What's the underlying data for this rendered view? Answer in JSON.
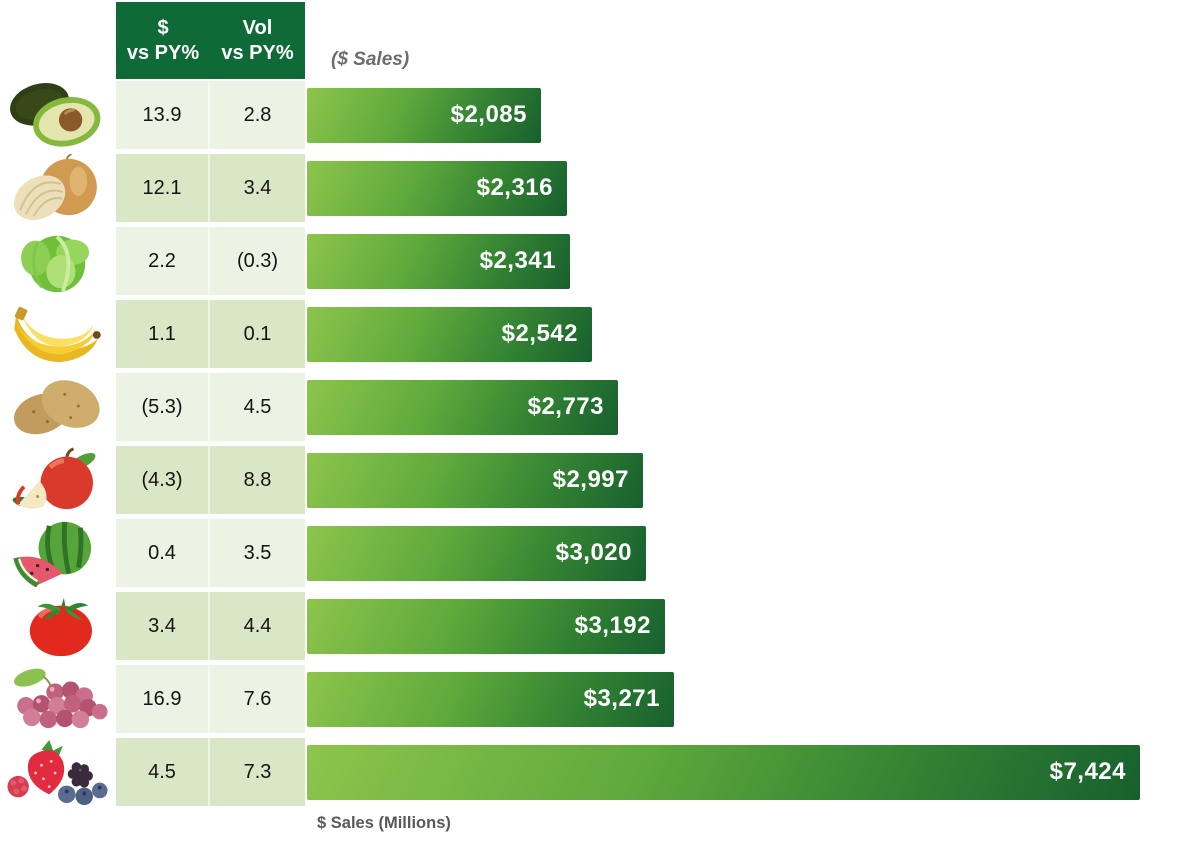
{
  "chart_data": {
    "type": "bar",
    "orientation": "horizontal",
    "series_header": "($ Sales)",
    "xlabel": "$ Sales (Millions)",
    "xlim": [
      0,
      7424
    ],
    "columns": {
      "col1": {
        "line1": "$",
        "line2": "vs PY%"
      },
      "col2": {
        "line1": "Vol",
        "line2": "vs PY%"
      }
    },
    "rows": [
      {
        "icon": "avocado-icon",
        "dollar_vs_py": "13.9",
        "vol_vs_py": "2.8",
        "sales": 2085,
        "sales_label": "$2,085"
      },
      {
        "icon": "onion-icon",
        "dollar_vs_py": "12.1",
        "vol_vs_py": "3.4",
        "sales": 2316,
        "sales_label": "$2,316"
      },
      {
        "icon": "lettuce-icon",
        "dollar_vs_py": "2.2",
        "vol_vs_py": "(0.3)",
        "sales": 2341,
        "sales_label": "$2,341"
      },
      {
        "icon": "banana-icon",
        "dollar_vs_py": "1.1",
        "vol_vs_py": "0.1",
        "sales": 2542,
        "sales_label": "$2,542"
      },
      {
        "icon": "potato-icon",
        "dollar_vs_py": "(5.3)",
        "vol_vs_py": "4.5",
        "sales": 2773,
        "sales_label": "$2,773"
      },
      {
        "icon": "apple-icon",
        "dollar_vs_py": "(4.3)",
        "vol_vs_py": "8.8",
        "sales": 2997,
        "sales_label": "$2,997"
      },
      {
        "icon": "watermelon-icon",
        "dollar_vs_py": "0.4",
        "vol_vs_py": "3.5",
        "sales": 3020,
        "sales_label": "$3,020"
      },
      {
        "icon": "tomato-icon",
        "dollar_vs_py": "3.4",
        "vol_vs_py": "4.4",
        "sales": 3192,
        "sales_label": "$3,192"
      },
      {
        "icon": "grapes-icon",
        "dollar_vs_py": "16.9",
        "vol_vs_py": "7.6",
        "sales": 3271,
        "sales_label": "$3,271"
      },
      {
        "icon": "berries-icon",
        "dollar_vs_py": "4.5",
        "vol_vs_py": "7.3",
        "sales": 7424,
        "sales_label": "$7,424"
      }
    ]
  },
  "colors": {
    "header_bg": "#0E6B38",
    "row_light": "#EDF3E4",
    "row_dark": "#D9E7C6",
    "bar_gradient_start": "#8DC54C",
    "bar_gradient_end": "#17602E",
    "bar_label": "#FFFFFF",
    "axis_label": "#595959",
    "series_header": "#6E6E6E"
  }
}
